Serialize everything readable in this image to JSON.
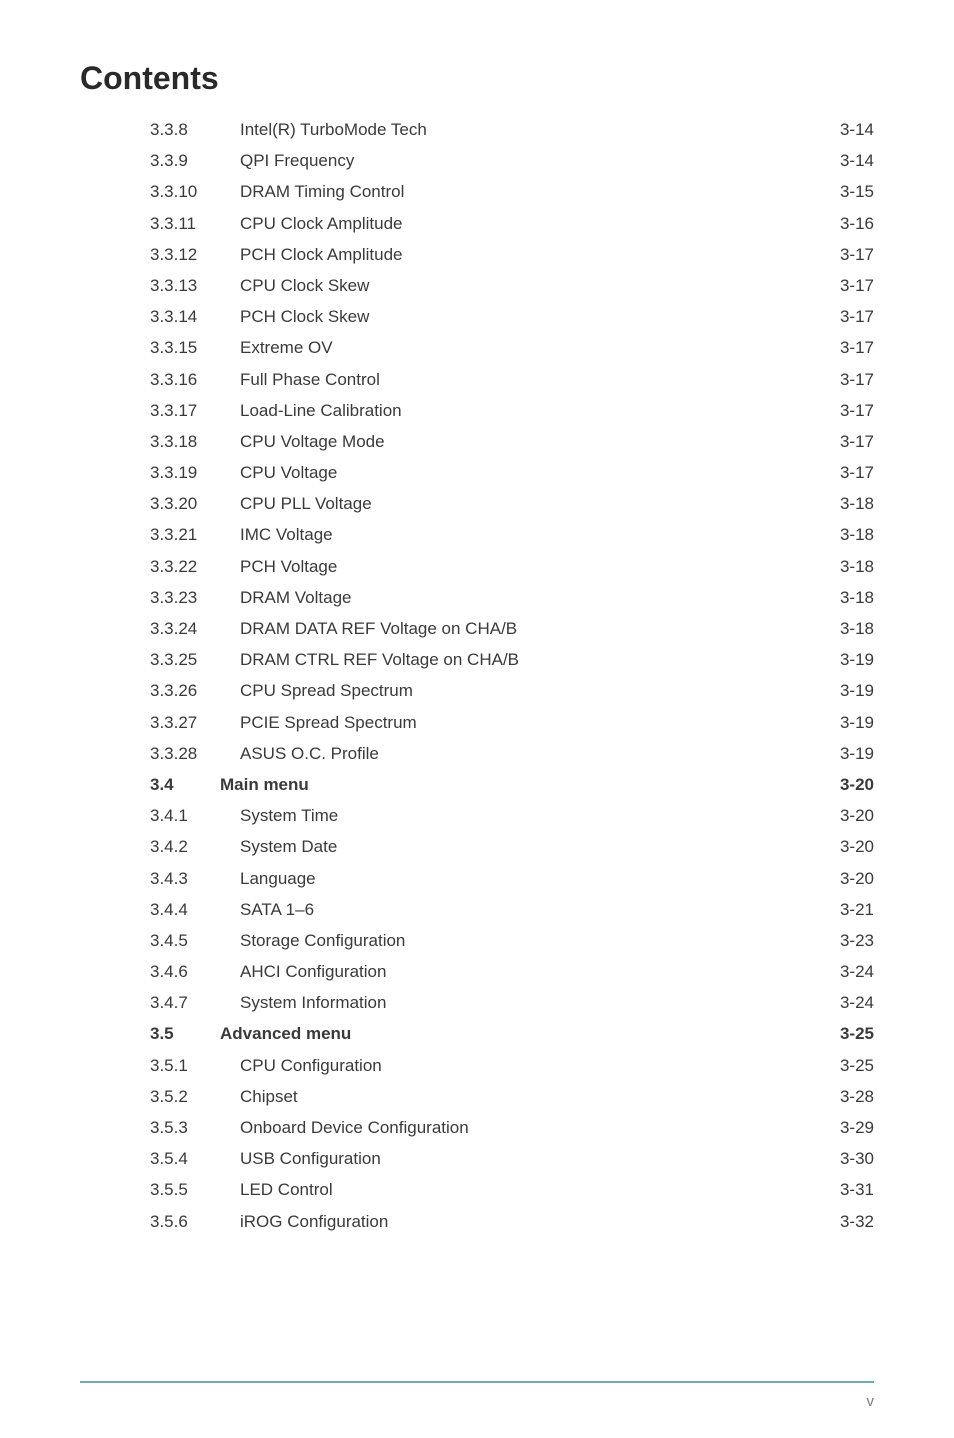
{
  "title": "Contents",
  "footer_page": "v",
  "colors": {
    "text": "#3a3a3a",
    "title": "#2a2a2a",
    "footer_line": "#6fa8b8",
    "footer_text": "#7a7a7a",
    "background": "#ffffff"
  },
  "typography": {
    "title_fontsize": 32,
    "body_fontsize": 17,
    "footer_fontsize": 15,
    "font_family": "Arial"
  },
  "entries": [
    {
      "level": 2,
      "num": "3.3.8",
      "label": "Intel(R) TurboMode Tech",
      "page": "3-14",
      "bold": false
    },
    {
      "level": 2,
      "num": "3.3.9",
      "label": "QPI Frequency",
      "page": "3-14",
      "bold": false
    },
    {
      "level": 2,
      "num": "3.3.10",
      "label": "DRAM Timing Control",
      "page": "3-15",
      "bold": false
    },
    {
      "level": 2,
      "num": "3.3.11",
      "label": "CPU Clock Amplitude",
      "page": "3-16",
      "bold": false
    },
    {
      "level": 2,
      "num": "3.3.12",
      "label": "PCH Clock Amplitude",
      "page": "3-17",
      "bold": false
    },
    {
      "level": 2,
      "num": "3.3.13",
      "label": "CPU Clock Skew",
      "page": "3-17",
      "bold": false
    },
    {
      "level": 2,
      "num": "3.3.14",
      "label": "PCH Clock Skew",
      "page": "3-17",
      "bold": false
    },
    {
      "level": 2,
      "num": "3.3.15",
      "label": "Extreme OV",
      "page": "3-17",
      "bold": false
    },
    {
      "level": 2,
      "num": "3.3.16",
      "label": "Full Phase Control",
      "page": "3-17",
      "bold": false
    },
    {
      "level": 2,
      "num": "3.3.17",
      "label": "Load-Line Calibration",
      "page": "3-17",
      "bold": false
    },
    {
      "level": 2,
      "num": "3.3.18",
      "label": "CPU Voltage Mode",
      "page": "3-17",
      "bold": false
    },
    {
      "level": 2,
      "num": "3.3.19",
      "label": "CPU Voltage",
      "page": "3-17",
      "bold": false
    },
    {
      "level": 2,
      "num": "3.3.20",
      "label": "CPU PLL Voltage",
      "page": "3-18",
      "bold": false
    },
    {
      "level": 2,
      "num": "3.3.21",
      "label": "IMC Voltage",
      "page": "3-18",
      "bold": false
    },
    {
      "level": 2,
      "num": "3.3.22",
      "label": "PCH Voltage",
      "page": "3-18",
      "bold": false
    },
    {
      "level": 2,
      "num": "3.3.23",
      "label": "DRAM Voltage",
      "page": "3-18",
      "bold": false
    },
    {
      "level": 2,
      "num": "3.3.24",
      "label": "DRAM DATA REF Voltage on CHA/B",
      "page": "3-18",
      "bold": false
    },
    {
      "level": 2,
      "num": "3.3.25",
      "label": "DRAM CTRL REF Voltage on CHA/B",
      "page": "3-19",
      "bold": false
    },
    {
      "level": 2,
      "num": "3.3.26",
      "label": "CPU Spread Spectrum",
      "page": "3-19",
      "bold": false
    },
    {
      "level": 2,
      "num": "3.3.27",
      "label": "PCIE Spread Spectrum",
      "page": "3-19",
      "bold": false
    },
    {
      "level": 2,
      "num": "3.3.28",
      "label": "ASUS O.C. Profile",
      "page": "3-19",
      "bold": false
    },
    {
      "level": 1,
      "num": "3.4",
      "label": "Main menu",
      "page": "3-20",
      "bold": true
    },
    {
      "level": 2,
      "num": "3.4.1",
      "label": "System Time",
      "page": "3-20",
      "bold": false
    },
    {
      "level": 2,
      "num": "3.4.2",
      "label": "System Date",
      "page": "3-20",
      "bold": false
    },
    {
      "level": 2,
      "num": "3.4.3",
      "label": "Language",
      "page": "3-20",
      "bold": false
    },
    {
      "level": 2,
      "num": "3.4.4",
      "label": "SATA 1–6",
      "page": "3-21",
      "bold": false
    },
    {
      "level": 2,
      "num": "3.4.5",
      "label": "Storage Configuration",
      "page": "3-23",
      "bold": false
    },
    {
      "level": 2,
      "num": "3.4.6",
      "label": "AHCI Configuration",
      "page": "3-24",
      "bold": false
    },
    {
      "level": 2,
      "num": "3.4.7",
      "label": "System Information",
      "page": "3-24",
      "bold": false
    },
    {
      "level": 1,
      "num": "3.5",
      "label": "Advanced menu",
      "page": "3-25",
      "bold": true
    },
    {
      "level": 2,
      "num": "3.5.1",
      "label": "CPU Configuration",
      "page": "3-25",
      "bold": false
    },
    {
      "level": 2,
      "num": "3.5.2",
      "label": "Chipset",
      "page": "3-28",
      "bold": false
    },
    {
      "level": 2,
      "num": "3.5.3",
      "label": "Onboard Device Configuration",
      "page": "3-29",
      "bold": false
    },
    {
      "level": 2,
      "num": "3.5.4",
      "label": "USB Configuration",
      "page": "3-30",
      "bold": false
    },
    {
      "level": 2,
      "num": "3.5.5",
      "label": "LED Control",
      "page": "3-31",
      "bold": false
    },
    {
      "level": 2,
      "num": "3.5.6",
      "label": "iROG Configuration",
      "page": "3-32",
      "bold": false
    }
  ]
}
